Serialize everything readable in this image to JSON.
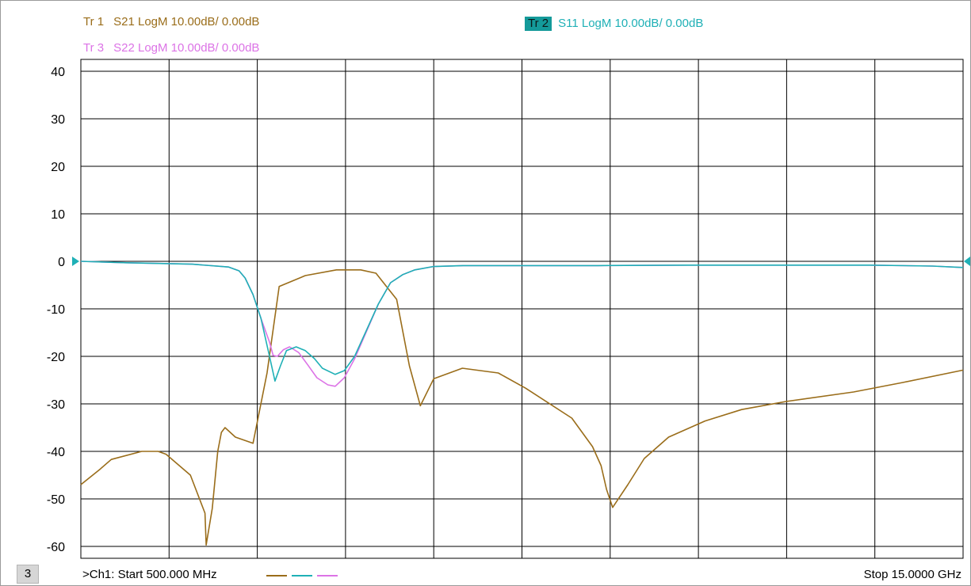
{
  "traces": [
    {
      "num": "Tr 1",
      "label": "S21 LogM 10.00dB/  0.00dB",
      "color": "#9a6d1a",
      "active": false
    },
    {
      "num": "Tr 2",
      "label": "S11 LogM 10.00dB/  0.00dB",
      "color": "#1fb0b6",
      "active": true
    },
    {
      "num": "Tr 3",
      "label": "S22 LogM 10.00dB/  0.00dB",
      "color": "#dc73e6",
      "active": false
    }
  ],
  "footer": {
    "channel_box": "3",
    "start": ">Ch1:  Start  500.000 MHz",
    "stop": "Stop  15.0000 GHz"
  },
  "chart_data": {
    "type": "line",
    "title": "",
    "xlabel": "",
    "ylabel": "",
    "xlim": [
      0.5,
      15.0
    ],
    "x_unit": "GHz",
    "ylim": [
      -62.5,
      42.5
    ],
    "yticks": [
      40,
      30,
      20,
      10,
      0,
      -10,
      -20,
      -30,
      -40,
      -50,
      -60
    ],
    "ytick_labels": [
      "40",
      "30",
      "20",
      "10",
      "0",
      "-10",
      "-20",
      "-30",
      "-40",
      "-50",
      "-60"
    ],
    "x_divisions": 10,
    "grid": true,
    "reference_level": 0,
    "series": [
      {
        "name": "S21",
        "color": "#9a6d1a",
        "x": [
          0.5,
          0.82,
          1.0,
          1.5,
          1.77,
          1.9,
          2.3,
          2.54,
          2.56,
          2.66,
          2.75,
          2.81,
          2.87,
          3.04,
          3.33,
          3.56,
          3.76,
          4.19,
          4.7,
          5.1,
          5.35,
          5.69,
          5.9,
          6.08,
          6.3,
          6.77,
          7.36,
          7.81,
          8.57,
          8.91,
          9.05,
          9.14,
          9.24,
          9.49,
          9.76,
          10.16,
          10.76,
          11.36,
          12.09,
          13.2,
          14.01,
          15.0
        ],
        "y": [
          -47.0,
          -43.7,
          -41.7,
          -40.0,
          -40.0,
          -40.6,
          -45.0,
          -53.0,
          -59.7,
          -52.0,
          -40.0,
          -36.0,
          -35.0,
          -37.0,
          -38.3,
          -23.5,
          -5.3,
          -3.0,
          -1.8,
          -1.8,
          -2.5,
          -8.0,
          -22.0,
          -30.4,
          -24.7,
          -22.5,
          -23.5,
          -26.7,
          -33.0,
          -39.0,
          -43.0,
          -48.0,
          -51.8,
          -47.0,
          -41.5,
          -37.0,
          -33.6,
          -31.2,
          -29.5,
          -27.5,
          -25.5,
          -22.9
        ]
      },
      {
        "name": "S11",
        "color": "#1fb0b6",
        "x": [
          0.5,
          1.25,
          2.33,
          2.93,
          3.1,
          3.2,
          3.33,
          3.46,
          3.6,
          3.69,
          3.78,
          3.88,
          4.04,
          4.19,
          4.34,
          4.47,
          4.68,
          4.83,
          5.0,
          5.39,
          5.59,
          5.79,
          5.99,
          6.29,
          6.78,
          7.78,
          9.0,
          10.48,
          11.97,
          13.46,
          14.5,
          15.0
        ],
        "y": [
          0.0,
          -0.3,
          -0.6,
          -1.2,
          -2.0,
          -3.5,
          -7.0,
          -12.0,
          -20.0,
          -25.2,
          -22.0,
          -18.8,
          -18.0,
          -18.8,
          -20.5,
          -22.5,
          -23.8,
          -23.0,
          -20.0,
          -9.0,
          -4.5,
          -2.8,
          -1.8,
          -1.1,
          -0.9,
          -0.9,
          -0.9,
          -0.8,
          -0.8,
          -0.8,
          -1.0,
          -1.3
        ]
      },
      {
        "name": "S22",
        "color": "#dc73e6",
        "x": [
          0.5,
          1.25,
          2.33,
          2.93,
          3.1,
          3.2,
          3.33,
          3.46,
          3.6,
          3.66,
          3.73,
          3.83,
          3.93,
          4.08,
          4.23,
          4.38,
          4.56,
          4.68,
          4.83,
          5.0,
          5.39,
          5.59,
          5.79,
          5.99,
          6.29,
          6.78,
          7.78,
          9.0,
          10.48,
          11.97,
          13.46,
          14.5,
          15.0
        ],
        "y": [
          0.0,
          -0.3,
          -0.6,
          -1.2,
          -2.0,
          -3.5,
          -7.0,
          -12.0,
          -17.0,
          -19.8,
          -20.0,
          -18.6,
          -18.0,
          -19.2,
          -21.8,
          -24.5,
          -26.0,
          -26.3,
          -24.5,
          -20.5,
          -9.0,
          -4.5,
          -2.8,
          -1.8,
          -1.1,
          -0.9,
          -0.9,
          -0.9,
          -0.8,
          -0.8,
          -0.8,
          -1.0,
          -1.3
        ]
      }
    ]
  }
}
